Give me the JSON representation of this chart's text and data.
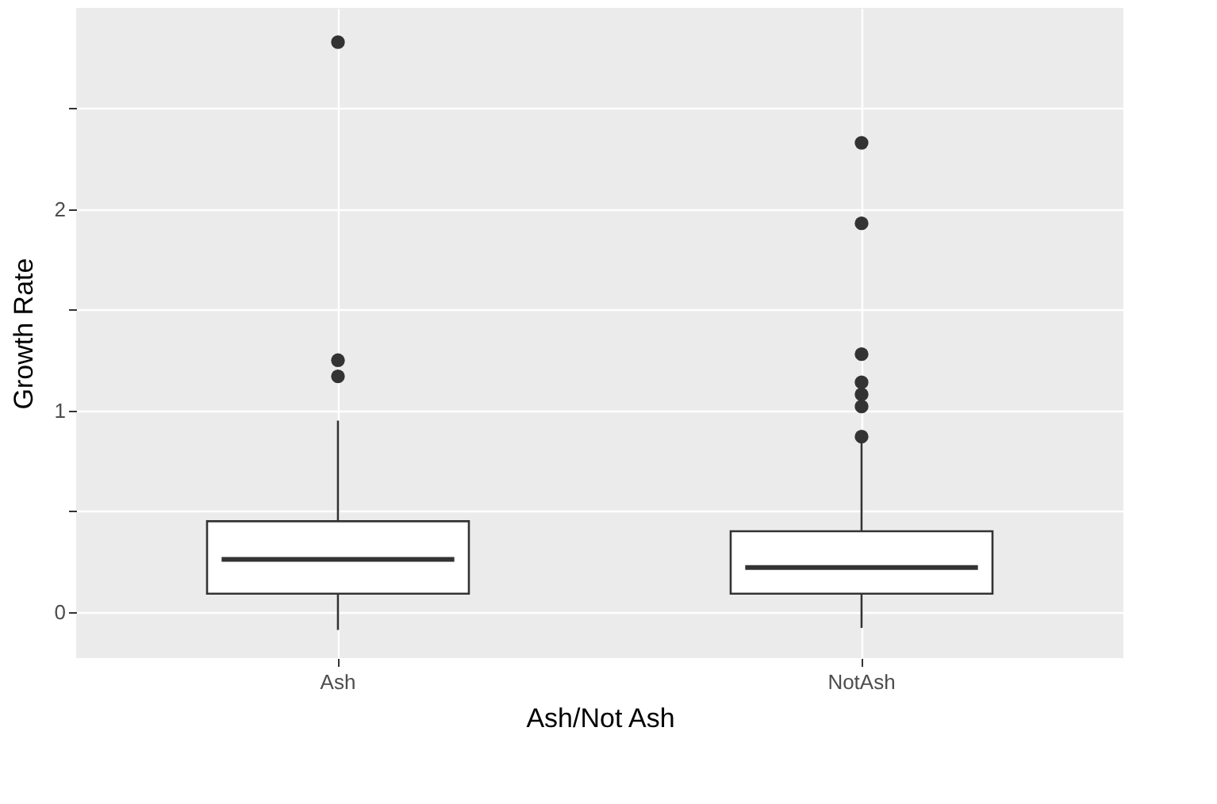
{
  "chart_data": {
    "type": "box",
    "xlabel": "Ash/Not Ash",
    "ylabel": "Growth Rate",
    "categories": [
      "Ash",
      "NotAsh"
    ],
    "boxes": [
      {
        "low": -0.09,
        "q1": 0.09,
        "median": 0.26,
        "q3": 0.45,
        "high": 0.95,
        "outliers": [
          1.17,
          1.25,
          2.83
        ]
      },
      {
        "low": -0.08,
        "q1": 0.09,
        "median": 0.22,
        "q3": 0.4,
        "high": 0.86,
        "outliers": [
          0.87,
          1.02,
          1.08,
          1.14,
          1.28,
          1.93,
          2.33
        ]
      }
    ],
    "ylim": [
      -0.23,
      3.0
    ],
    "yticks": [
      0,
      {
        "value": 0.5,
        "label": null
      },
      1,
      {
        "value": 1.5,
        "label": null
      },
      2,
      {
        "value": 2.5,
        "label": null
      }
    ],
    "grid": true
  }
}
